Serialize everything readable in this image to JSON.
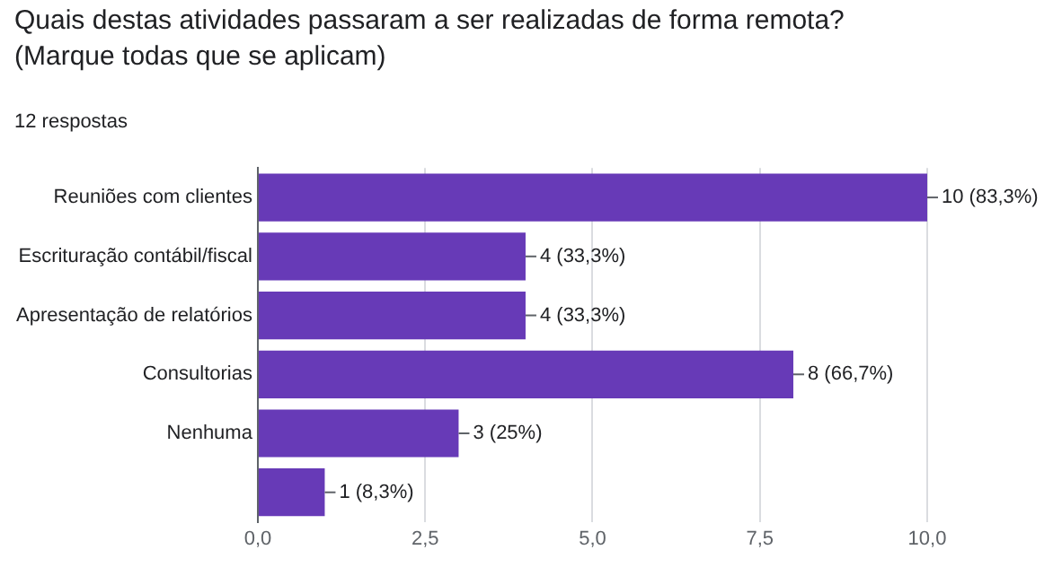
{
  "chart_data": {
    "type": "bar",
    "orientation": "horizontal",
    "title": "Quais destas atividades passaram a ser realizadas de forma remota? (Marque todas que se aplicam)",
    "subtitle": "12 respostas",
    "categories": [
      "Reuniões com clientes",
      "Escrituração contábil/fiscal",
      "Apresentação de relatórios",
      "Consultorias",
      "Nenhuma",
      null
    ],
    "values": [
      10,
      4,
      4,
      8,
      3,
      1
    ],
    "value_labels": [
      "10 (83,3%)",
      "4 (33,3%)",
      "4 (33,3%)",
      "8 (66,7%)",
      "3 (25%)",
      "1 (8,3%)"
    ],
    "color": "#673ab7",
    "xlim": [
      0,
      10
    ],
    "xticks": [
      {
        "value": 0,
        "label": "0,0"
      },
      {
        "value": 2.5,
        "label": "2,5"
      },
      {
        "value": 5,
        "label": "5,0"
      },
      {
        "value": 7.5,
        "label": "7,5"
      },
      {
        "value": 10,
        "label": "10,0"
      }
    ],
    "grid": "x",
    "legend": false
  }
}
